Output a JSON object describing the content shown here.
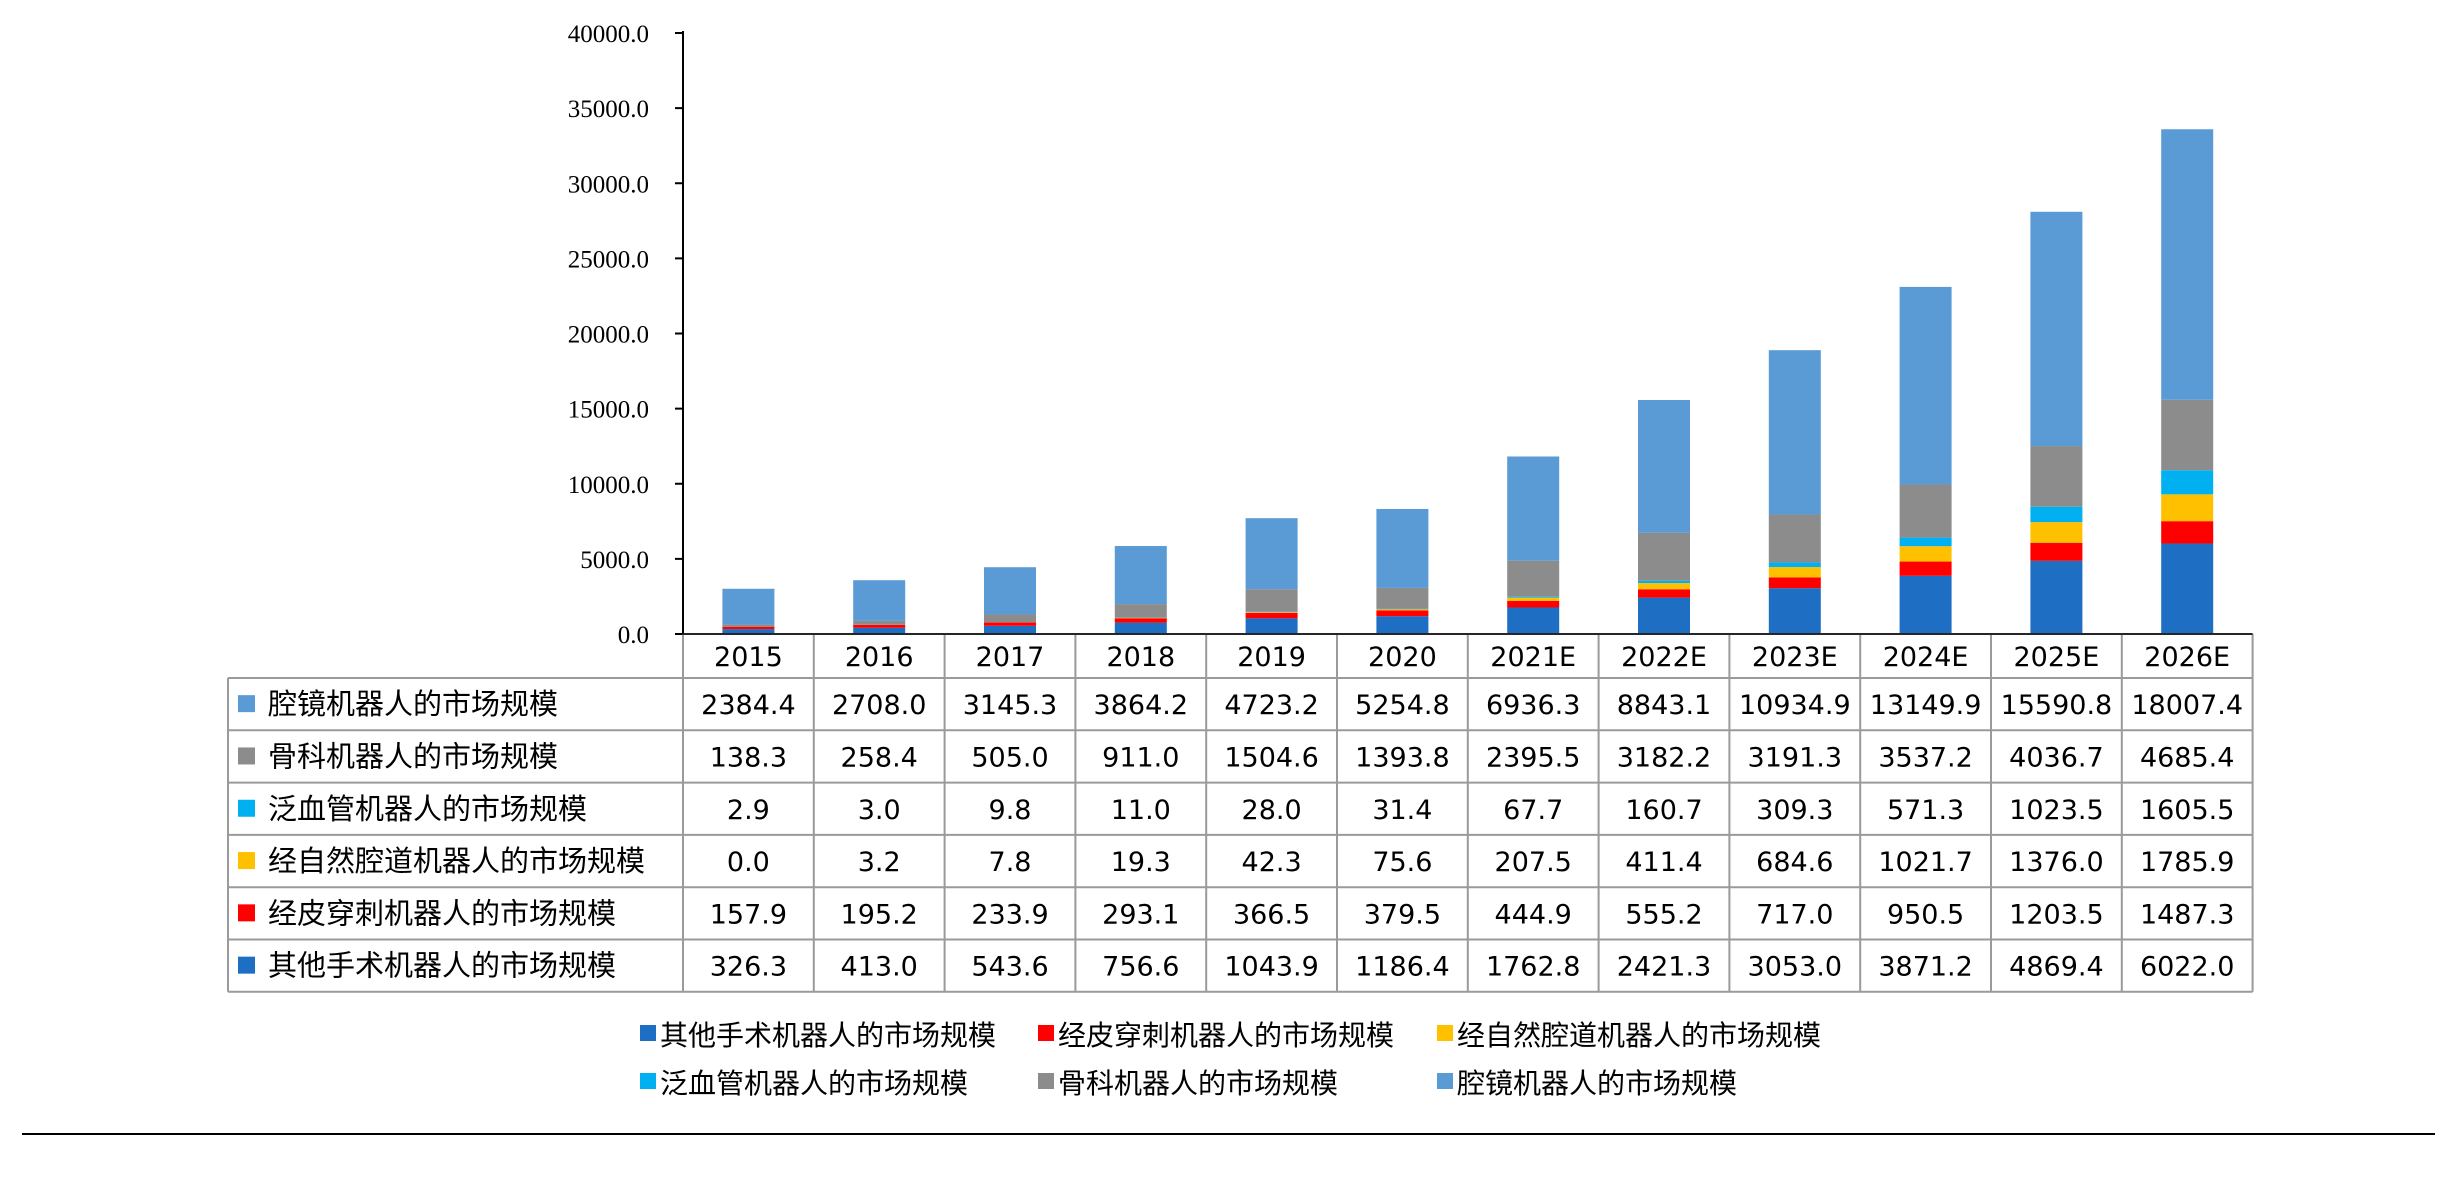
{
  "chart_data": {
    "type": "bar",
    "stacked": true,
    "categories": [
      "2015",
      "2016",
      "2017",
      "2018",
      "2019",
      "2020",
      "2021E",
      "2022E",
      "2023E",
      "2024E",
      "2025E",
      "2026E"
    ],
    "ylim": [
      0,
      40000
    ],
    "yticks": [
      "0.0",
      "5000.0",
      "10000.0",
      "15000.0",
      "20000.0",
      "25000.0",
      "30000.0",
      "35000.0",
      "40000.0"
    ],
    "legend_position": "bottom",
    "series": [
      {
        "name": "其他手术机器人的市场规模",
        "color": "#1E6FC4",
        "values": [
          326.3,
          413.0,
          543.6,
          756.6,
          1043.9,
          1186.4,
          1762.8,
          2421.3,
          3053.0,
          3871.2,
          4869.4,
          6022.0
        ],
        "labels": [
          "326.3",
          "413.0",
          "543.6",
          "756.6",
          "1043.9",
          "1186.4",
          "1762.8",
          "2421.3",
          "3053.0",
          "3871.2",
          "4869.4",
          "6022.0"
        ]
      },
      {
        "name": "经皮穿刺机器人的市场规模",
        "color": "#FF0000",
        "values": [
          157.9,
          195.2,
          233.9,
          293.1,
          366.5,
          379.5,
          444.9,
          555.2,
          717.0,
          950.5,
          1203.5,
          1487.3
        ],
        "labels": [
          "157.9",
          "195.2",
          "233.9",
          "293.1",
          "366.5",
          "379.5",
          "444.9",
          "555.2",
          "717.0",
          "950.5",
          "1203.5",
          "1487.3"
        ]
      },
      {
        "name": "经自然腔道机器人的市场规模",
        "color": "#FFC000",
        "values": [
          0.0,
          3.2,
          7.8,
          19.3,
          42.3,
          75.6,
          207.5,
          411.4,
          684.6,
          1021.7,
          1376.0,
          1785.9
        ],
        "labels": [
          "0.0",
          "3.2",
          "7.8",
          "19.3",
          "42.3",
          "75.6",
          "207.5",
          "411.4",
          "684.6",
          "1021.7",
          "1376.0",
          "1785.9"
        ]
      },
      {
        "name": "泛血管机器人的市场规模",
        "color": "#00B0F0",
        "values": [
          2.9,
          3.0,
          9.8,
          11.0,
          28.0,
          31.4,
          67.7,
          160.7,
          309.3,
          571.3,
          1023.5,
          1605.5
        ],
        "labels": [
          "2.9",
          "3.0",
          "9.8",
          "11.0",
          "28.0",
          "31.4",
          "67.7",
          "160.7",
          "309.3",
          "571.3",
          "1023.5",
          "1605.5"
        ]
      },
      {
        "name": "骨科机器人的市场规模",
        "color": "#8C8C8C",
        "values": [
          138.3,
          258.4,
          505.0,
          911.0,
          1504.6,
          1393.8,
          2395.5,
          3182.2,
          3191.3,
          3537.2,
          4036.7,
          4685.4
        ],
        "labels": [
          "138.3",
          "258.4",
          "505.0",
          "911.0",
          "1504.6",
          "1393.8",
          "2395.5",
          "3182.2",
          "3191.3",
          "3537.2",
          "4036.7",
          "4685.4"
        ]
      },
      {
        "name": "腔镜机器人的市场规模",
        "color": "#5B9BD5",
        "values": [
          2384.4,
          2708.0,
          3145.3,
          3864.2,
          4723.2,
          5254.8,
          6936.3,
          8843.1,
          10934.9,
          13149.9,
          15590.8,
          18007.4
        ],
        "labels": [
          "2384.4",
          "2708.0",
          "3145.3",
          "3864.2",
          "4723.2",
          "5254.8",
          "6936.3",
          "8843.1",
          "10934.9",
          "13149.9",
          "15590.8",
          "18007.4"
        ]
      }
    ],
    "legend_rows": [
      [
        "其他手术机器人的市场规模",
        "经皮穿刺机器人的市场规模",
        "经自然腔道机器人的市场规模"
      ],
      [
        "泛血管机器人的市场规模",
        "骨科机器人的市场规模",
        "腔镜机器人的市场规模"
      ]
    ]
  }
}
